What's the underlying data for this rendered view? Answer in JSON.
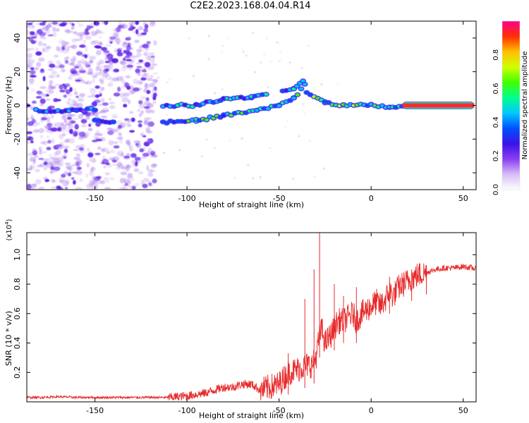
{
  "figure": {
    "title": "C2E2.2023.168.04.04.R14"
  },
  "colors": {
    "axis": "#000000",
    "snr_line": "#e82a2a",
    "echo_ring": "#3d35f0",
    "noise": "#a878ee",
    "noise_strong": "#5a1be6"
  },
  "chart_data": [
    {
      "type": "heatmap",
      "xlabel": "Height of straight line (km)",
      "ylabel": "Frequency (Hz)",
      "xlim": [
        -187,
        57
      ],
      "ylim": [
        -50,
        50
      ],
      "x_ticks": [
        -150,
        -100,
        -50,
        0,
        50
      ],
      "y_ticks": [
        -40,
        -20,
        0,
        20,
        40
      ],
      "grid": false,
      "colorbar": {
        "label": "Normalized spectral amplitude",
        "range": [
          0,
          1
        ],
        "ticks": [
          "0.0",
          "0.2",
          "0.4",
          "0.6",
          "0.8"
        ],
        "colors": [
          "#ffffff",
          "#d6bdf7",
          "#8b3df2",
          "#3a13e8",
          "#0050ff",
          "#00c8ff",
          "#00ff90",
          "#40ff00",
          "#d0ff00",
          "#ffc000",
          "#ff3000",
          "#ff0090"
        ]
      },
      "echo_traces": [
        {
          "name_hidden": "",
          "points": [
            [
              -182,
              -3
            ],
            [
              -160,
              -3
            ],
            [
              -150,
              -2
            ]
          ],
          "amplitude": 0.35
        },
        {
          "points": [
            [
              -150,
              -9
            ],
            [
              -140,
              -10
            ]
          ],
          "amplitude": 0.3
        },
        {
          "points": [
            [
              -113,
              0
            ],
            [
              -95,
              0
            ],
            [
              -80,
              4
            ],
            [
              -65,
              5
            ],
            [
              -57,
              7
            ]
          ],
          "amplitude": 0.45
        },
        {
          "points": [
            [
              -113,
              -10
            ],
            [
              -95,
              -9
            ],
            [
              -80,
              -6
            ],
            [
              -62,
              -3
            ],
            [
              -50,
              0
            ],
            [
              -42,
              4
            ],
            [
              -36,
              13
            ]
          ],
          "amplitude": 0.5
        },
        {
          "points": [
            [
              -48,
              8
            ],
            [
              -42,
              10
            ],
            [
              -37,
              15
            ]
          ],
          "amplitude": 0.5
        },
        {
          "points": [
            [
              -35,
              7
            ],
            [
              -25,
              2
            ],
            [
              -15,
              0
            ],
            [
              0,
              0
            ],
            [
              10,
              -1
            ],
            [
              17,
              -1
            ]
          ],
          "amplitude": 0.55
        },
        {
          "points": [
            [
              17,
              0
            ],
            [
              56,
              0
            ]
          ],
          "amplitude": 0.95
        }
      ]
    },
    {
      "type": "line",
      "xlabel": "Height of straight line (km)",
      "ylabel": "SNR (10 * v/v)",
      "y_scale_label": "(x10",
      "y_scale_exp": "4",
      "xlim": [
        -187,
        57
      ],
      "ylim": [
        0,
        1.15
      ],
      "x_ticks": [
        -150,
        -100,
        -50,
        0,
        50
      ],
      "y_ticks": [
        0.2,
        0.4,
        0.6,
        0.8,
        1.0
      ],
      "grid": false,
      "series": [
        {
          "x": [
            -187,
            -180,
            -170,
            -160,
            -150,
            -140,
            -130,
            -120,
            -110,
            -100,
            -90,
            -85,
            -80,
            -75,
            -70,
            -65,
            -60,
            -55,
            -50,
            -45,
            -40,
            -35,
            -32,
            -30,
            -28,
            -27,
            -25,
            -22,
            -20,
            -18,
            -15,
            -12,
            -10,
            -8,
            -5,
            -3,
            0,
            3,
            5,
            8,
            10,
            12,
            15,
            20,
            25,
            30,
            35,
            40,
            45,
            50,
            55,
            57
          ],
          "values": [
            0.03,
            0.03,
            0.035,
            0.03,
            0.03,
            0.03,
            0.03,
            0.03,
            0.03,
            0.04,
            0.06,
            0.08,
            0.1,
            0.1,
            0.12,
            0.12,
            0.08,
            0.1,
            0.12,
            0.2,
            0.22,
            0.25,
            0.25,
            0.3,
            0.45,
            0.5,
            0.4,
            0.45,
            0.5,
            0.55,
            0.55,
            0.58,
            0.6,
            0.55,
            0.6,
            0.62,
            0.65,
            0.68,
            0.65,
            0.7,
            0.75,
            0.72,
            0.78,
            0.82,
            0.86,
            0.88,
            0.9,
            0.91,
            0.91,
            0.92,
            0.91,
            0.9
          ],
          "spikes": [
            [
              -28,
              1.15
            ],
            [
              -31,
              0.9
            ],
            [
              -36,
              0.7
            ],
            [
              -45,
              0.33
            ],
            [
              -20,
              0.8
            ],
            [
              -15,
              0.72
            ],
            [
              -8,
              0.78
            ],
            [
              10,
              0.85
            ],
            [
              22,
              0.9
            ],
            [
              30,
              0.93
            ]
          ]
        }
      ]
    }
  ]
}
